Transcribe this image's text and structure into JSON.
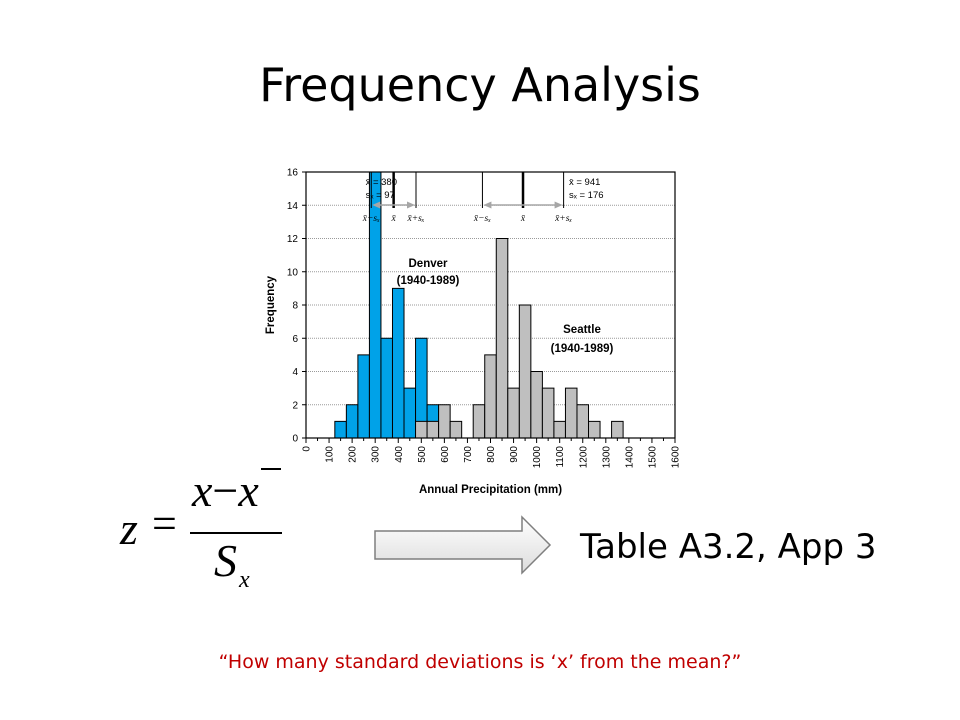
{
  "slide": {
    "title": "Frequency Analysis",
    "reference": "Table A3.2, App 3",
    "question": "“How many standard deviations is ‘x’ from the mean?”"
  },
  "formula": {
    "lhs": "z",
    "equals": "=",
    "numerator_x": "x",
    "minus": "−",
    "numerator_xbar": "x",
    "denominator": "S",
    "denominator_sub": "x"
  },
  "colors": {
    "denver": "#00a2e8",
    "seattle": "#bfbfbf",
    "mean_arrow": "#a6a6a6",
    "question_text": "#c00000"
  },
  "chart_data": {
    "type": "bar",
    "xlabel": "Annual Precipitation (mm)",
    "ylabel": "Frequency",
    "xlim": [
      0,
      1600
    ],
    "ylim": [
      0,
      16
    ],
    "x_ticks": [
      "0",
      "100",
      "200",
      "300",
      "400",
      "500",
      "600",
      "700",
      "800",
      "900",
      "1000",
      "1100",
      "1200",
      "1300",
      "1400",
      "1500",
      "1600"
    ],
    "y_ticks": [
      "0",
      "2",
      "4",
      "6",
      "8",
      "10",
      "12",
      "14",
      "16"
    ],
    "bin_width": 100,
    "series": [
      {
        "label_line1": "Denver",
        "label_line2": "(1940-1989)",
        "color": "#00a2e8",
        "bins": [
          [
            150,
            1
          ],
          [
            200,
            2
          ],
          [
            250,
            5
          ],
          [
            300,
            16
          ],
          [
            350,
            6
          ],
          [
            400,
            9
          ],
          [
            450,
            3
          ],
          [
            500,
            6
          ],
          [
            550,
            2
          ]
        ],
        "stats": {
          "mean_text": "x̄ = 380",
          "sd_text": "sₓ = 97",
          "mean": 380,
          "sd": 97
        },
        "marker_labels": [
          "x̄−sₓ",
          "x̄",
          "x̄+sₓ"
        ]
      },
      {
        "label_line1": "Seattle",
        "label_line2": "(1940-1989)",
        "color": "#bfbfbf",
        "bins": [
          [
            500,
            1
          ],
          [
            550,
            1
          ],
          [
            600,
            2
          ],
          [
            650,
            1
          ],
          [
            750,
            2
          ],
          [
            800,
            5
          ],
          [
            850,
            12
          ],
          [
            900,
            3
          ],
          [
            950,
            8
          ],
          [
            1000,
            4
          ],
          [
            1050,
            3
          ],
          [
            1100,
            1
          ],
          [
            1150,
            3
          ],
          [
            1200,
            2
          ],
          [
            1250,
            1
          ],
          [
            1350,
            1
          ]
        ],
        "stats": {
          "mean_text": "x̄ = 941",
          "sd_text": "sₓ = 176",
          "mean": 941,
          "sd": 176
        },
        "marker_labels": [
          "x̄−sₓ",
          "x̄",
          "x̄+sₓ"
        ]
      }
    ]
  }
}
